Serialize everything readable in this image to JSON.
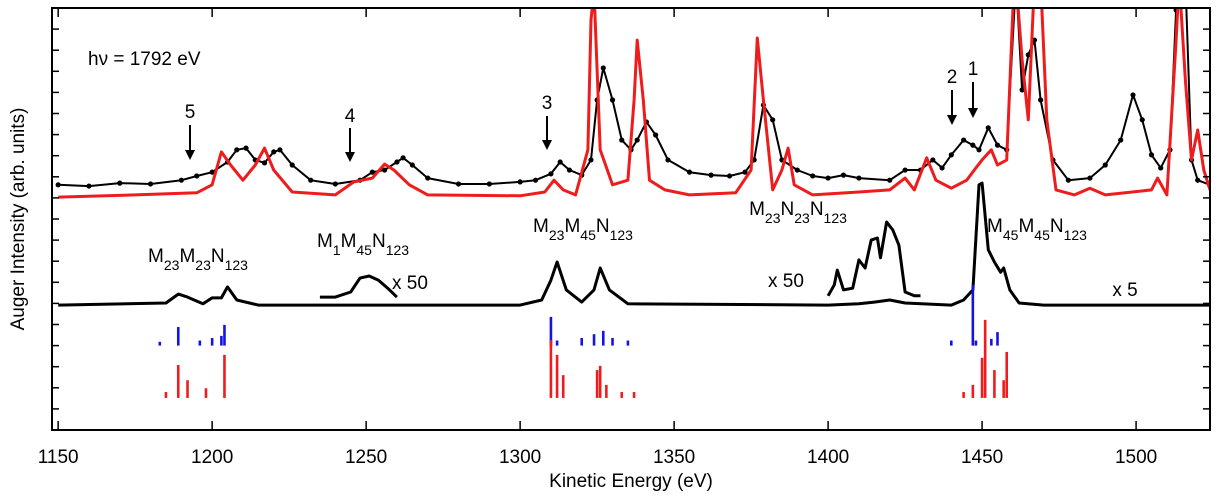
{
  "chart_data": {
    "type": "line",
    "x_label": "Kinetic Energy (eV)",
    "y_label": "Auger Intensity (arb. units)",
    "xlim": [
      1148,
      1524
    ],
    "xticks": [
      1150,
      1200,
      1250,
      1300,
      1350,
      1400,
      1450,
      1500
    ],
    "ylim": [
      0,
      100
    ],
    "yticks": [
      0,
      5,
      10,
      15,
      20,
      25,
      30,
      35,
      40,
      45,
      50,
      55,
      60,
      65,
      70,
      75,
      80,
      85,
      90,
      95,
      100
    ],
    "annotations": [
      "hν = 1792 eV",
      "5",
      "4",
      "3",
      "2",
      "1"
    ],
    "transition_labels": [
      "M23M23N123",
      "M1M45N123",
      "M23M45N123",
      "M23N23N123",
      "M45M45N123"
    ],
    "scale_labels": [
      "x 50",
      "x 50",
      "x 5"
    ],
    "series": [
      {
        "style": "dots",
        "color": "#000000",
        "x": [
          1150,
          1160,
          1170,
          1180,
          1190,
          1195,
          1200,
          1205,
          1208,
          1211,
          1214,
          1217,
          1220,
          1222,
          1226,
          1232,
          1240,
          1248,
          1252,
          1256,
          1260,
          1262,
          1265,
          1270,
          1280,
          1290,
          1300,
          1305,
          1310,
          1313,
          1316,
          1320,
          1323,
          1325,
          1327,
          1330,
          1333,
          1336,
          1338,
          1341,
          1344,
          1348,
          1355,
          1362,
          1368,
          1373,
          1376,
          1379,
          1382,
          1385,
          1390,
          1395,
          1400,
          1405,
          1410,
          1420,
          1425,
          1430,
          1434,
          1437,
          1440,
          1444,
          1447,
          1449,
          1452,
          1455,
          1458,
          1461,
          1463,
          1465,
          1467,
          1469,
          1473,
          1478,
          1485,
          1490,
          1495,
          1499,
          1502,
          1505,
          1508,
          1511,
          1513,
          1516,
          1518,
          1520,
          1524
        ],
        "values": [
          58.1,
          57.8,
          58.5,
          58.3,
          59.2,
          60.2,
          61.1,
          63.5,
          66.4,
          66.8,
          64.0,
          63.3,
          65.9,
          66.4,
          62.8,
          59.2,
          58.3,
          59.2,
          61.1,
          61.6,
          63.5,
          64.5,
          62.8,
          59.7,
          58.3,
          58.3,
          58.8,
          59.2,
          60.7,
          63.5,
          61.6,
          60.4,
          64.0,
          78.2,
          85.8,
          78.2,
          68.7,
          66.4,
          68.7,
          73.0,
          69.9,
          64.0,
          61.1,
          60.4,
          60.2,
          61.1,
          64.0,
          77.0,
          73.5,
          64.0,
          61.6,
          60.2,
          59.7,
          60.4,
          59.7,
          59.2,
          61.6,
          61.6,
          64.0,
          62.1,
          65.2,
          68.7,
          67.5,
          66.4,
          71.6,
          67.5,
          66.4,
          106.6,
          80.6,
          88.9,
          92.4,
          78.2,
          64.0,
          59.2,
          59.7,
          62.8,
          68.7,
          79.4,
          73.5,
          65.2,
          62.1,
          66.4,
          99.5,
          106.6,
          64.0,
          59.2,
          58.1
        ]
      },
      {
        "style": "line",
        "color": "#ee1c1c",
        "x": [
          1150,
          1175,
          1195,
          1200,
          1203,
          1206,
          1210,
          1214,
          1217,
          1220,
          1226,
          1240,
          1246,
          1252,
          1256,
          1259,
          1264,
          1270,
          1300,
          1308,
          1311,
          1314,
          1318,
          1322,
          1323,
          1324,
          1326,
          1330,
          1335,
          1337,
          1338,
          1340,
          1342,
          1347,
          1355,
          1370,
          1375,
          1377,
          1379,
          1382,
          1385,
          1387,
          1389,
          1395,
          1410,
          1420,
          1425,
          1428,
          1432,
          1435,
          1440,
          1445,
          1448,
          1450,
          1453,
          1455,
          1458,
          1460,
          1461,
          1463,
          1465,
          1467,
          1469,
          1471,
          1474,
          1480,
          1485,
          1490,
          1505,
          1507,
          1510,
          1513,
          1514,
          1516,
          1518,
          1520,
          1522,
          1524
        ],
        "values": [
          55.2,
          55.7,
          56.2,
          58.1,
          65.9,
          62.8,
          59.2,
          62.8,
          66.8,
          61.6,
          56.4,
          55.7,
          58.8,
          59.7,
          63.0,
          61.6,
          58.1,
          55.7,
          55.5,
          56.4,
          59.2,
          56.9,
          55.7,
          66.4,
          97.2,
          104.3,
          66.4,
          58.1,
          59.2,
          78.2,
          92.4,
          78.2,
          59.2,
          56.9,
          55.7,
          56.2,
          61.6,
          92.9,
          78.2,
          56.9,
          61.6,
          66.8,
          58.1,
          55.7,
          56.4,
          56.9,
          59.7,
          56.9,
          64.5,
          59.2,
          57.3,
          59.2,
          62.1,
          64.0,
          66.4,
          62.8,
          64.0,
          99.5,
          106.6,
          87.7,
          73.5,
          106.6,
          106.6,
          73.5,
          56.9,
          55.7,
          57.3,
          55.7,
          56.9,
          59.7,
          55.7,
          92.4,
          106.6,
          82.9,
          64.0,
          71.1,
          61.6,
          56.9
        ]
      },
      {
        "style": "line",
        "color": "#000000",
        "x": [
          1150,
          1185,
          1189,
          1192,
          1197,
          1200,
          1203,
          1205,
          1208,
          1215,
          1300,
          1307,
          1310,
          1312,
          1315,
          1320,
          1324,
          1326,
          1329,
          1335,
          1400,
          1410,
          1415,
          1420,
          1425,
          1440,
          1444,
          1447,
          1449,
          1450,
          1452,
          1454,
          1456,
          1457,
          1459,
          1462,
          1470,
          1524
        ],
        "values": [
          29.6,
          30.1,
          32.2,
          31.5,
          29.9,
          31.3,
          31.3,
          33.9,
          30.8,
          29.6,
          29.6,
          30.8,
          35.5,
          39.8,
          33.2,
          30.3,
          33.2,
          38.4,
          33.2,
          29.9,
          29.6,
          29.9,
          30.3,
          30.8,
          30.1,
          29.6,
          30.8,
          33.2,
          58.1,
          58.5,
          42.7,
          39.8,
          37.4,
          38.4,
          33.2,
          30.1,
          29.6,
          29.6
        ]
      },
      {
        "style": "line",
        "color": "#000000",
        "x": [
          1235,
          1240,
          1245,
          1248,
          1251,
          1254,
          1257,
          1260
        ],
        "values": [
          31.5,
          31.5,
          32.7,
          36.0,
          36.5,
          35.5,
          33.6,
          31.5
        ]
      },
      {
        "style": "line",
        "color": "#000000",
        "x": [
          1400,
          1402,
          1403,
          1405,
          1408,
          1410,
          1412,
          1414,
          1416,
          1417,
          1419,
          1421,
          1423,
          1425,
          1428,
          1430
        ],
        "values": [
          31.8,
          34.4,
          37.9,
          33.2,
          33.6,
          40.3,
          38.4,
          45.0,
          45.5,
          40.8,
          49.3,
          47.4,
          43.8,
          32.7,
          31.8,
          31.8
        ]
      },
      {
        "style": "stick",
        "color": "#1414e0",
        "baseline": 20,
        "x": [
          1183,
          1189,
          1196,
          1200,
          1203,
          1204,
          1310,
          1312,
          1320,
          1324,
          1327,
          1330,
          1335,
          1440,
          1447,
          1448,
          1453,
          1455
        ],
        "values": [
          20.9,
          24.4,
          21.2,
          21.8,
          22.3,
          24.9,
          26.8,
          21.2,
          21.8,
          22.7,
          23.5,
          21.8,
          21.2,
          21.2,
          34.4,
          21.2,
          21.6,
          23.2
        ]
      },
      {
        "style": "stick",
        "color": "#ee1c1c",
        "baseline": 7.6,
        "x": [
          1185,
          1189,
          1192,
          1198,
          1204,
          1310,
          1312,
          1314,
          1325,
          1326,
          1328,
          1333,
          1337,
          1444,
          1447,
          1450,
          1451,
          1454,
          1457,
          1458
        ],
        "values": [
          9.0,
          15.4,
          11.8,
          9.9,
          17.8,
          21.3,
          17.8,
          13.0,
          14.2,
          15.2,
          10.7,
          9.0,
          9.0,
          9.0,
          10.7,
          17.1,
          26.1,
          14.2,
          11.8,
          18.5
        ]
      }
    ]
  }
}
